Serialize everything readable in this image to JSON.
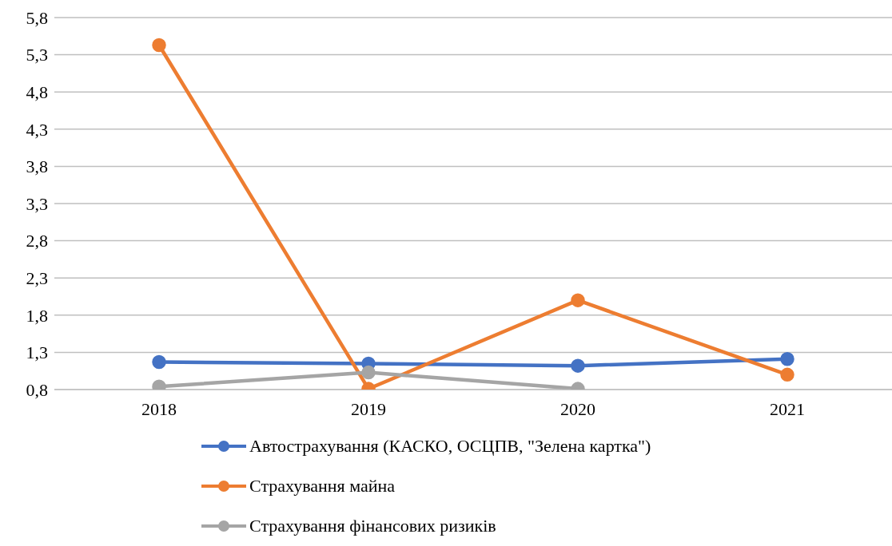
{
  "chart_data": {
    "type": "line",
    "categories": [
      "2018",
      "2019",
      "2020",
      "2021"
    ],
    "series": [
      {
        "name": "Автострахування (КАСКО, ОСЦПВ, \"Зелена картка\")",
        "color": "#4472c4",
        "values": [
          1.17,
          1.15,
          1.12,
          1.21
        ]
      },
      {
        "name": "Страхування майна",
        "color": "#ed7d31",
        "values": [
          5.43,
          0.81,
          2.0,
          1.0
        ]
      },
      {
        "name": "Страхування фінансових ризиків",
        "color": "#a5a5a5",
        "values": [
          0.84,
          1.03,
          0.81,
          null
        ]
      }
    ],
    "ylim": [
      0.8,
      5.8
    ],
    "yticks": [
      {
        "value": 0.8,
        "label": "0,8"
      },
      {
        "value": 1.3,
        "label": "1,3"
      },
      {
        "value": 1.8,
        "label": "1,8"
      },
      {
        "value": 2.3,
        "label": "2,3"
      },
      {
        "value": 2.8,
        "label": "2,8"
      },
      {
        "value": 3.3,
        "label": "3,3"
      },
      {
        "value": 3.8,
        "label": "3,8"
      },
      {
        "value": 4.3,
        "label": "4,3"
      },
      {
        "value": 4.8,
        "label": "4,8"
      },
      {
        "value": 5.3,
        "label": "5,3"
      },
      {
        "value": 5.8,
        "label": "5,8"
      }
    ],
    "grid": "y",
    "legend": "bottom",
    "marker": "circle",
    "line_style": "solid"
  }
}
